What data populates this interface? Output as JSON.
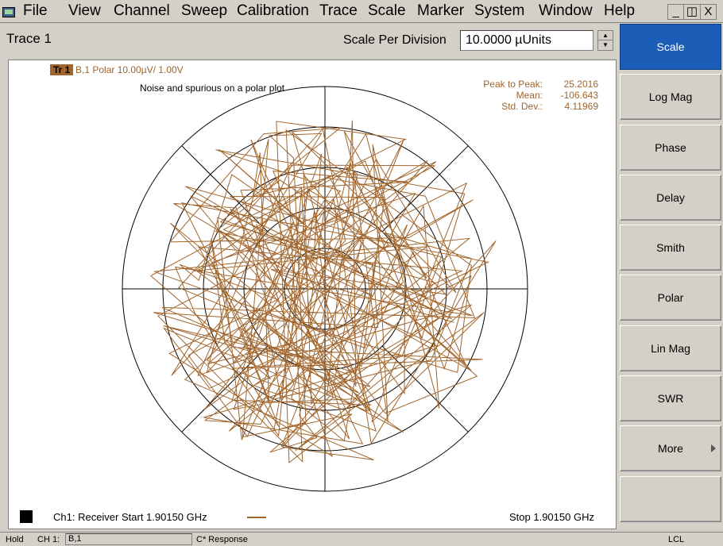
{
  "menu": {
    "items": [
      "File",
      "View",
      "Channel",
      "Sweep",
      "Calibration",
      "Trace",
      "Scale",
      "Marker",
      "System",
      "Window",
      "Help"
    ],
    "window_buttons": [
      "_",
      "̄̆",
      "X"
    ]
  },
  "trace_header": {
    "title": "Trace 1",
    "scale_label": "Scale Per Division",
    "scale_value": "10.0000 µUnits"
  },
  "plot": {
    "badge": "Tr 1",
    "trace_desc": "B,1 Polar 10.00µV/  1.00V",
    "title": "Noise and spurious on a polar plot",
    "stats": [
      {
        "label": "Peak to Peak:",
        "value": "25.2016"
      },
      {
        "label": "Mean:",
        "value": "-106.643"
      },
      {
        "label": "Std. Dev.:",
        "value": "4.11969"
      }
    ],
    "channel_info": "Ch1: Receiver Start  1.90150 GHz",
    "stop_info": "Stop  1.90150 GHz",
    "trace_color": "#a0652c",
    "grid_color": "#000000"
  },
  "softkeys": [
    "Scale",
    "Log Mag",
    "Phase",
    "Delay",
    "Smith",
    "Polar",
    "Lin Mag",
    "SWR",
    "More",
    ""
  ],
  "softkey_active": "#1c5db8",
  "status": {
    "hold": "Hold",
    "ch": "CH 1:",
    "param": "B,1",
    "response": "C* Response",
    "lcl": "LCL"
  }
}
